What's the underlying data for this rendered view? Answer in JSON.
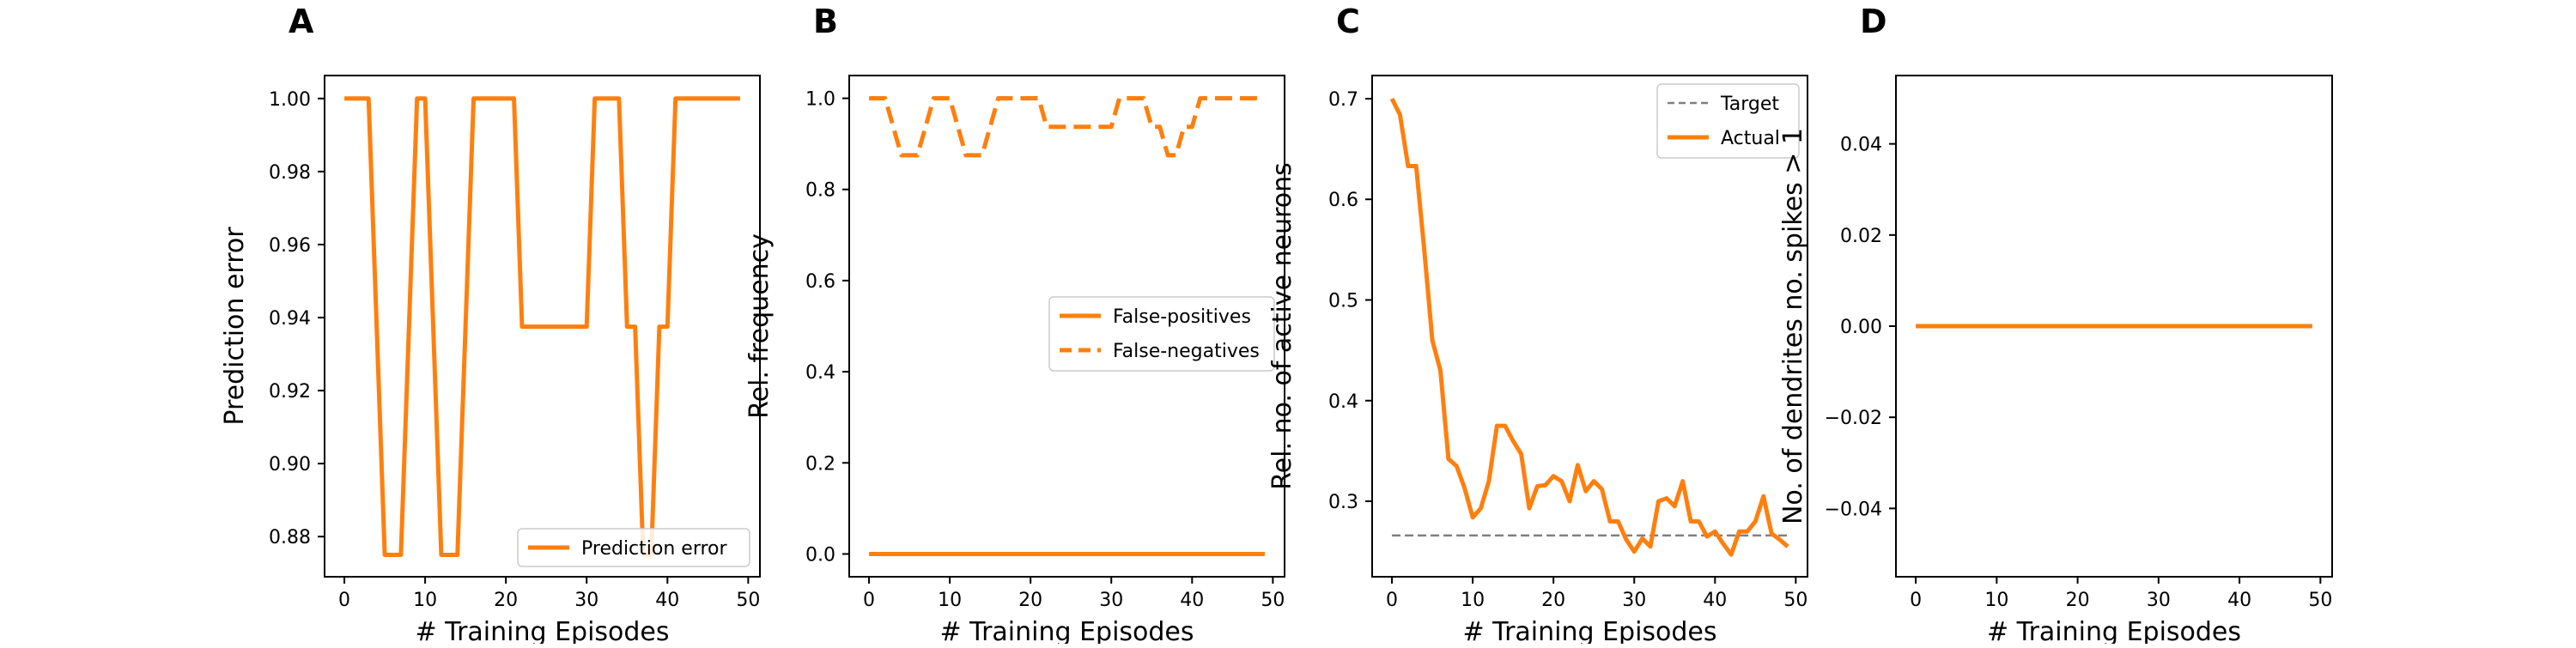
{
  "colors": {
    "series": "#ff7f0e",
    "target": "#808080",
    "axis": "#000000"
  },
  "chart_data": [
    {
      "type": "line",
      "panel_letter": "A",
      "xlabel": "# Training Episodes",
      "ylabel": "Prediction error",
      "xlim": [
        -2.45,
        51.45
      ],
      "ylim": [
        0.869,
        1.0063
      ],
      "xticks": [
        0,
        10,
        20,
        30,
        40,
        50
      ],
      "xtick_labels": [
        "0",
        "10",
        "20",
        "30",
        "40",
        "50"
      ],
      "yticks": [
        0.88,
        0.9,
        0.92,
        0.94,
        0.96,
        0.98,
        1.0
      ],
      "ytick_labels": [
        "0.88",
        "0.90",
        "0.92",
        "0.94",
        "0.96",
        "0.98",
        "1.00"
      ],
      "legend_position": "lower-right",
      "series": [
        {
          "name": "Prediction error",
          "style": "solid",
          "x": [
            0,
            1,
            2,
            3,
            4,
            5,
            6,
            7,
            8,
            9,
            10,
            11,
            12,
            13,
            14,
            15,
            16,
            17,
            18,
            19,
            20,
            21,
            22,
            23,
            24,
            25,
            26,
            27,
            28,
            29,
            30,
            31,
            32,
            33,
            34,
            35,
            36,
            37,
            38,
            39,
            40,
            41,
            42,
            43,
            44,
            45,
            46,
            47,
            48,
            49
          ],
          "y": [
            1.0,
            1.0,
            1.0,
            1.0,
            0.9375,
            0.875,
            0.875,
            0.875,
            0.9375,
            1.0,
            1.0,
            0.9375,
            0.875,
            0.875,
            0.875,
            0.9375,
            1.0,
            1.0,
            1.0,
            1.0,
            1.0,
            1.0,
            0.9375,
            0.9375,
            0.9375,
            0.9375,
            0.9375,
            0.9375,
            0.9375,
            0.9375,
            0.9375,
            1.0,
            1.0,
            1.0,
            1.0,
            0.9375,
            0.9375,
            0.875,
            0.875,
            0.9375,
            0.9375,
            1.0,
            1.0,
            1.0,
            1.0,
            1.0,
            1.0,
            1.0,
            1.0,
            1.0
          ]
        }
      ]
    },
    {
      "type": "line",
      "panel_letter": "B",
      "xlabel": "# Training Episodes",
      "ylabel": "Rel. frequency",
      "xlim": [
        -2.45,
        51.45
      ],
      "ylim": [
        -0.05,
        1.05
      ],
      "xticks": [
        0,
        10,
        20,
        30,
        40,
        50
      ],
      "xtick_labels": [
        "0",
        "10",
        "20",
        "30",
        "40",
        "50"
      ],
      "yticks": [
        0.0,
        0.2,
        0.4,
        0.6,
        0.8,
        1.0
      ],
      "ytick_labels": [
        "0.0",
        "0.2",
        "0.4",
        "0.6",
        "0.8",
        "1.0"
      ],
      "legend_position": "center-right",
      "series": [
        {
          "name": "False-positives",
          "style": "solid",
          "x": [
            0,
            49
          ],
          "y": [
            0.0,
            0.0
          ]
        },
        {
          "name": "False-negatives",
          "style": "dashed",
          "x": [
            0,
            1,
            2,
            3,
            4,
            5,
            6,
            7,
            8,
            9,
            10,
            11,
            12,
            13,
            14,
            15,
            16,
            17,
            18,
            19,
            20,
            21,
            22,
            23,
            24,
            25,
            26,
            27,
            28,
            29,
            30,
            31,
            32,
            33,
            34,
            35,
            36,
            37,
            38,
            39,
            40,
            41,
            42,
            43,
            44,
            45,
            46,
            47,
            48,
            49
          ],
          "y": [
            1.0,
            1.0,
            1.0,
            0.9375,
            0.875,
            0.875,
            0.875,
            0.9375,
            1.0,
            1.0,
            1.0,
            0.9375,
            0.875,
            0.875,
            0.875,
            0.9375,
            1.0,
            1.0,
            1.0,
            1.0,
            1.0,
            1.0,
            0.9375,
            0.9375,
            0.9375,
            0.9375,
            0.9375,
            0.9375,
            0.9375,
            0.9375,
            0.9375,
            1.0,
            1.0,
            1.0,
            1.0,
            0.9375,
            0.9375,
            0.875,
            0.875,
            0.9375,
            0.9375,
            1.0,
            1.0,
            1.0,
            1.0,
            1.0,
            1.0,
            1.0,
            1.0,
            1.0
          ]
        }
      ]
    },
    {
      "type": "line",
      "panel_letter": "C",
      "xlabel": "# Training Episodes",
      "ylabel": "Rel. no. of active neurons",
      "xlim": [
        -2.45,
        51.45
      ],
      "ylim": [
        0.225,
        0.723
      ],
      "xticks": [
        0,
        10,
        20,
        30,
        40,
        50
      ],
      "xtick_labels": [
        "0",
        "10",
        "20",
        "30",
        "40",
        "50"
      ],
      "yticks": [
        0.3,
        0.4,
        0.5,
        0.6,
        0.7
      ],
      "ytick_labels": [
        "0.3",
        "0.4",
        "0.5",
        "0.6",
        "0.7"
      ],
      "legend_position": "upper-right",
      "series": [
        {
          "name": "Target",
          "style": "dashed",
          "color_key": "target",
          "x": [
            0,
            49
          ],
          "y": [
            0.266,
            0.266
          ]
        },
        {
          "name": "Actual",
          "style": "solid",
          "x": [
            0,
            1,
            2,
            3,
            4,
            5,
            6,
            7,
            8,
            9,
            10,
            11,
            12,
            13,
            14,
            15,
            16,
            17,
            18,
            19,
            20,
            21,
            22,
            23,
            24,
            25,
            26,
            27,
            28,
            29,
            30,
            31,
            32,
            33,
            34,
            35,
            36,
            37,
            38,
            39,
            40,
            41,
            42,
            43,
            44,
            45,
            46,
            47,
            48,
            49
          ],
          "y": [
            0.7,
            0.684,
            0.633,
            0.633,
            0.55,
            0.46,
            0.43,
            0.342,
            0.335,
            0.313,
            0.284,
            0.293,
            0.32,
            0.375,
            0.375,
            0.36,
            0.347,
            0.293,
            0.315,
            0.316,
            0.325,
            0.32,
            0.3,
            0.336,
            0.31,
            0.32,
            0.312,
            0.28,
            0.28,
            0.262,
            0.25,
            0.263,
            0.255,
            0.3,
            0.303,
            0.295,
            0.32,
            0.28,
            0.28,
            0.265,
            0.27,
            0.258,
            0.247,
            0.27,
            0.27,
            0.28,
            0.305,
            0.268,
            0.262,
            0.255
          ]
        }
      ]
    },
    {
      "type": "line",
      "panel_letter": "D",
      "xlabel": "# Training Episodes",
      "ylabel": "No. of dendrites no. spikes > 1",
      "xlim": [
        -2.45,
        51.45
      ],
      "ylim": [
        -0.055,
        0.055
      ],
      "xticks": [
        0,
        10,
        20,
        30,
        40,
        50
      ],
      "xtick_labels": [
        "0",
        "10",
        "20",
        "30",
        "40",
        "50"
      ],
      "yticks": [
        -0.04,
        -0.02,
        0.0,
        0.02,
        0.04
      ],
      "ytick_labels": [
        "−0.04",
        "−0.02",
        "0.00",
        "0.02",
        "0.04"
      ],
      "series": [
        {
          "name": "",
          "style": "solid",
          "x": [
            0,
            49
          ],
          "y": [
            0.0,
            0.0
          ]
        }
      ]
    }
  ]
}
